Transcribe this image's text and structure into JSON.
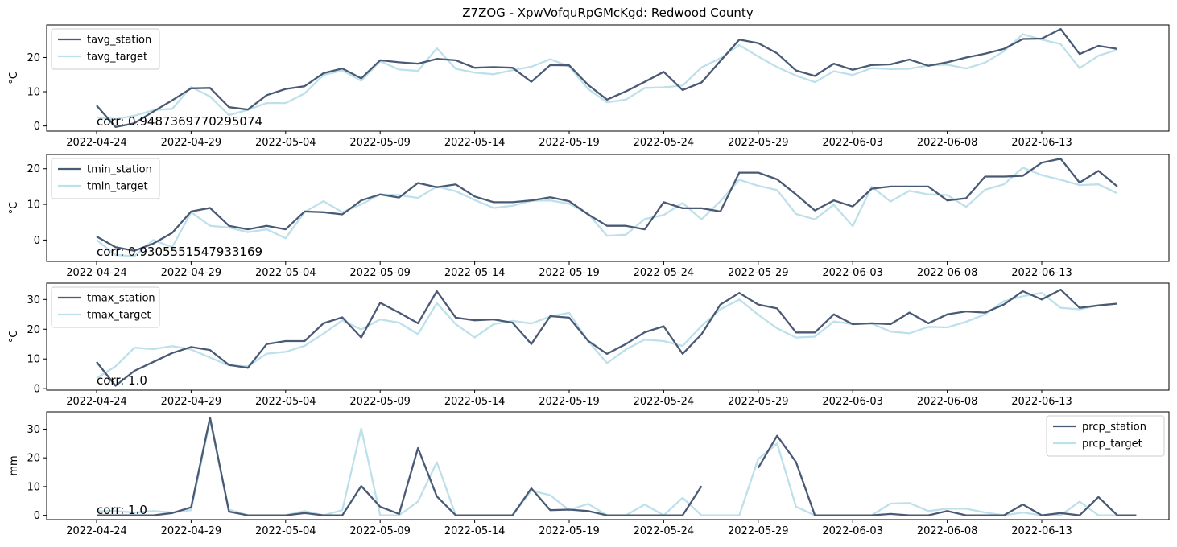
{
  "figure_title": "Z7ZOG - XpwVofquRpGMcKgd: Redwood County",
  "colors": {
    "station": "#4a5a75",
    "target": "#bde0ea"
  },
  "chart_data": [
    {
      "type": "line",
      "xlabel": "",
      "ylabel": "°C",
      "ylim": [
        -1.5,
        29.5
      ],
      "yticks": [
        0,
        10,
        20
      ],
      "xtick_labels": [
        "2022-04-24",
        "2022-04-29",
        "2022-05-04",
        "2022-05-09",
        "2022-05-14",
        "2022-05-19",
        "2022-05-24",
        "2022-05-29",
        "2022-06-03",
        "2022-06-08",
        "2022-06-13"
      ],
      "legend_position": "top-left",
      "annotation": "corr: 0.9487369770295074",
      "series": [
        {
          "name": "tavg_station",
          "values": [
            6.0,
            -0.3,
            0.8,
            4.2,
            7.5,
            11.0,
            11.1,
            5.5,
            4.8,
            9.0,
            10.8,
            11.6,
            15.4,
            16.8,
            13.9,
            19.2,
            18.6,
            18.2,
            19.6,
            19.2,
            17.0,
            17.2,
            17.0,
            12.9,
            17.8,
            17.7,
            12.0,
            7.7,
            10.1,
            12.9,
            15.8,
            10.5,
            12.7,
            19.0,
            25.2,
            24.2,
            21.2,
            16.2,
            14.6,
            18.2,
            16.4,
            17.8,
            18.0,
            19.4,
            17.6,
            18.6,
            20.0,
            21.1,
            22.5,
            25.4,
            25.5,
            28.3,
            21.0,
            23.4,
            22.5
          ]
        },
        {
          "name": "tavg_target",
          "values": [
            2.5,
            2.0,
            3.0,
            4.6,
            5.0,
            11.4,
            8.6,
            3.2,
            4.7,
            6.7,
            6.7,
            9.5,
            14.9,
            16.2,
            13.2,
            18.9,
            16.5,
            16.1,
            22.7,
            16.7,
            15.6,
            15.1,
            16.3,
            17.3,
            19.5,
            17.4,
            10.8,
            6.9,
            7.7,
            11.1,
            11.3,
            11.8,
            17.1,
            19.8,
            23.6,
            20.3,
            17.2,
            14.7,
            12.8,
            16.0,
            14.9,
            16.9,
            16.6,
            16.7,
            17.7,
            17.9,
            16.8,
            18.5,
            21.8,
            26.8,
            25.2,
            23.9,
            16.9,
            20.5,
            22.3
          ]
        }
      ]
    },
    {
      "type": "line",
      "xlabel": "",
      "ylabel": "°C",
      "ylim": [
        -6,
        24
      ],
      "yticks": [
        0,
        10,
        20
      ],
      "xtick_labels": [
        "2022-04-24",
        "2022-04-29",
        "2022-05-04",
        "2022-05-09",
        "2022-05-14",
        "2022-05-19",
        "2022-05-24",
        "2022-05-29",
        "2022-06-03",
        "2022-06-08",
        "2022-06-13"
      ],
      "legend_position": "top-left",
      "annotation": "corr: 0.9305551547933169",
      "series": [
        {
          "name": "tmin_station",
          "values": [
            1.0,
            -2.0,
            -3.0,
            -1.0,
            2.0,
            8.0,
            9.0,
            4.0,
            3.0,
            4.0,
            3.0,
            8.0,
            7.8,
            7.2,
            11.1,
            12.8,
            11.9,
            16.0,
            14.8,
            15.6,
            12.2,
            10.6,
            10.6,
            11.1,
            12.0,
            10.9,
            7.2,
            4.0,
            4.0,
            3.0,
            10.6,
            8.9,
            8.9,
            8.0,
            18.9,
            18.9,
            17.0,
            12.8,
            8.3,
            11.1,
            9.4,
            14.4,
            15.0,
            15.0,
            15.0,
            11.1,
            11.7,
            17.8,
            17.8,
            18.0,
            21.7,
            22.8,
            16.1,
            19.4,
            15.0
          ]
        },
        {
          "name": "tmin_target",
          "values": [
            0.0,
            -4.2,
            -4.5,
            0.0,
            -2.0,
            7.8,
            4.0,
            3.5,
            2.2,
            3.0,
            0.5,
            7.8,
            10.9,
            7.8,
            10.0,
            12.8,
            12.6,
            11.8,
            15.0,
            13.7,
            11.2,
            9.0,
            9.6,
            11.0,
            11.1,
            10.2,
            7.4,
            1.2,
            1.5,
            5.9,
            7.0,
            10.4,
            5.8,
            10.9,
            16.9,
            15.2,
            14.0,
            7.3,
            5.8,
            9.9,
            3.9,
            14.9,
            10.8,
            13.8,
            12.8,
            12.6,
            9.3,
            14.1,
            15.6,
            20.3,
            18.2,
            16.9,
            15.4,
            15.6,
            13.1
          ]
        }
      ]
    },
    {
      "type": "line",
      "xlabel": "",
      "ylabel": "°C",
      "ylim": [
        -0.5,
        35.5
      ],
      "yticks": [
        0,
        10,
        20,
        30
      ],
      "xtick_labels": [
        "2022-04-24",
        "2022-04-29",
        "2022-05-04",
        "2022-05-09",
        "2022-05-14",
        "2022-05-19",
        "2022-05-24",
        "2022-05-29",
        "2022-06-03",
        "2022-06-08",
        "2022-06-13"
      ],
      "legend_position": "top-left",
      "annotation": "corr: 1.0",
      "series": [
        {
          "name": "tmax_station",
          "values": [
            9.0,
            1.0,
            6.0,
            9.0,
            12.0,
            14.0,
            13.0,
            8.0,
            7.0,
            15.0,
            16.0,
            16.0,
            22.0,
            24.0,
            17.2,
            28.9,
            25.6,
            22.0,
            32.8,
            23.9,
            23.0,
            23.3,
            22.2,
            15.0,
            24.4,
            23.9,
            16.1,
            11.7,
            15.0,
            19.0,
            21.0,
            11.7,
            18.3,
            28.3,
            32.2,
            28.3,
            27.0,
            18.9,
            18.9,
            25.0,
            21.7,
            22.0,
            21.7,
            25.6,
            22.0,
            25.0,
            26.0,
            25.6,
            28.3,
            32.8,
            30.0,
            33.3,
            27.2,
            28.0,
            28.6
          ]
        },
        {
          "name": "tmax_target",
          "values": [
            3.5,
            7.5,
            13.8,
            13.3,
            14.3,
            13.2,
            10.5,
            7.8,
            7.5,
            11.8,
            12.4,
            14.4,
            18.5,
            23.0,
            19.9,
            23.3,
            22.2,
            18.3,
            28.8,
            21.7,
            17.2,
            21.7,
            22.8,
            21.9,
            24.3,
            25.5,
            16.0,
            8.6,
            13.2,
            16.5,
            16.0,
            14.4,
            21.1,
            26.7,
            30.0,
            24.9,
            20.3,
            17.2,
            17.5,
            22.6,
            21.7,
            21.9,
            19.2,
            18.6,
            20.8,
            20.6,
            22.5,
            25.0,
            29.4,
            31.1,
            32.2,
            27.2,
            26.7,
            28.0,
            28.6
          ]
        }
      ]
    },
    {
      "type": "line",
      "xlabel": "",
      "ylabel": "mm",
      "ylim": [
        -1.5,
        36
      ],
      "yticks": [
        0,
        10,
        20,
        30
      ],
      "xtick_labels": [
        "2022-04-24",
        "2022-04-29",
        "2022-05-04",
        "2022-05-09",
        "2022-05-14",
        "2022-05-19",
        "2022-05-24",
        "2022-05-29",
        "2022-06-03",
        "2022-06-08",
        "2022-06-13"
      ],
      "legend_position": "top-right",
      "annotation": "corr: 1.0",
      "series": [
        {
          "name": "prcp_station",
          "values": [
            0.0,
            0.0,
            0.0,
            0.0,
            0.8,
            2.8,
            34.0,
            1.3,
            0.0,
            0.0,
            0.0,
            0.8,
            0.0,
            0.0,
            10.2,
            3.0,
            0.5,
            23.4,
            6.6,
            0.0,
            0.0,
            0.0,
            0.0,
            9.4,
            1.8,
            2.0,
            1.5,
            0.0,
            0.0,
            0.0,
            0.0,
            0.0,
            10.2,
            null,
            null,
            16.5,
            27.7,
            18.5,
            0.0,
            0.0,
            0.0,
            0.0,
            0.5,
            0.0,
            0.0,
            1.5,
            0.0,
            0.0,
            0.0,
            3.8,
            0.0,
            0.8,
            0.0,
            6.4,
            0.0,
            0.0
          ]
        },
        {
          "name": "prcp_target",
          "values": [
            1.5,
            1.5,
            1.0,
            1.5,
            1.0,
            1.8,
            33.0,
            2.0,
            0.0,
            0.0,
            0.0,
            1.5,
            0.0,
            1.8,
            30.2,
            0.0,
            0.0,
            4.8,
            18.5,
            0.0,
            0.0,
            0.0,
            0.0,
            8.6,
            7.0,
            1.8,
            4.0,
            0.0,
            0.0,
            3.8,
            0.0,
            6.1,
            0.0,
            0.0,
            0.0,
            19.6,
            25.0,
            3.0,
            0.0,
            0.0,
            0.0,
            0.0,
            4.1,
            4.3,
            1.5,
            2.3,
            2.3,
            1.0,
            0.0,
            1.0,
            0.0,
            0.0,
            4.8,
            0.0,
            0.0,
            0.0
          ]
        }
      ]
    }
  ]
}
